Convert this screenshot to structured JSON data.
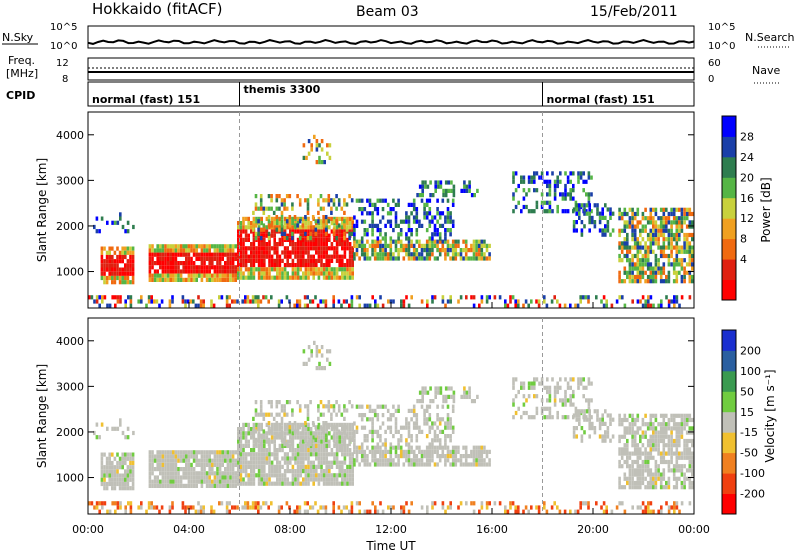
{
  "header": {
    "station": "Hokkaido (fitACF)",
    "beam": "Beam 03",
    "date": "15/Feb/2011"
  },
  "top_panels": {
    "nsky_label": "N.Sky",
    "nsky_ticks": [
      "10^5",
      "10^0"
    ],
    "nsearch_label": "N.Search",
    "nsearch_ticks": [
      "10^5",
      "10^0"
    ],
    "freq_label_1": "Freq.",
    "freq_label_2": "[MHz]",
    "freq_ticks": [
      "12",
      "8"
    ],
    "nave_label": "Nave",
    "nave_ticks": [
      "60",
      "0"
    ],
    "cpid_label": "CPID",
    "cpid_segments": [
      {
        "label": "normal (fast) 151",
        "start_hour": 0,
        "end_hour": 6
      },
      {
        "label": "themis 3300",
        "start_hour": 6,
        "end_hour": 18
      },
      {
        "label": "normal (fast) 151",
        "start_hour": 18,
        "end_hour": 24
      }
    ]
  },
  "axes": {
    "y_label": "Slant Range [km]",
    "y_ticks": [
      "1000",
      "2000",
      "3000",
      "4000"
    ],
    "x_label": "Time UT",
    "x_ticks": [
      "00:00",
      "04:00",
      "08:00",
      "12:00",
      "16:00",
      "20:00",
      "00:00"
    ]
  },
  "power_bar": {
    "label": "Power [dB]",
    "ticks": [
      "4",
      "8",
      "12",
      "16",
      "20",
      "24",
      "28"
    ],
    "colors": [
      "#0000ff",
      "#1a3fa8",
      "#2e7d4f",
      "#55b545",
      "#c8d13c",
      "#f0a020",
      "#f06a10",
      "#e02010",
      "#ff0000"
    ]
  },
  "velocity_bar": {
    "label": "Velocity [m s⁻¹]",
    "ticks": [
      "200",
      "100",
      "50",
      "15",
      "-15",
      "-50",
      "-100",
      "-200"
    ],
    "colors": [
      "#1a2fcf",
      "#2a5fa0",
      "#3a9a50",
      "#70cc40",
      "#c0c0b8",
      "#f0c030",
      "#f08020",
      "#f04010",
      "#ff0000"
    ]
  },
  "chart_data": {
    "type": "heatmap",
    "title": "Hokkaido (fitACF)",
    "xlabel": "Time UT",
    "ylabel": "Slant Range [km]",
    "xlim": [
      0,
      24
    ],
    "ylim": [
      200,
      4500
    ],
    "x_ticks_hours": [
      0,
      4,
      8,
      12,
      16,
      20,
      24
    ],
    "y_ticks_km": [
      1000,
      2000,
      3000,
      4000
    ],
    "power_scale_db": [
      0,
      30
    ],
    "velocity_scale_ms": [
      -200,
      200
    ]
  }
}
